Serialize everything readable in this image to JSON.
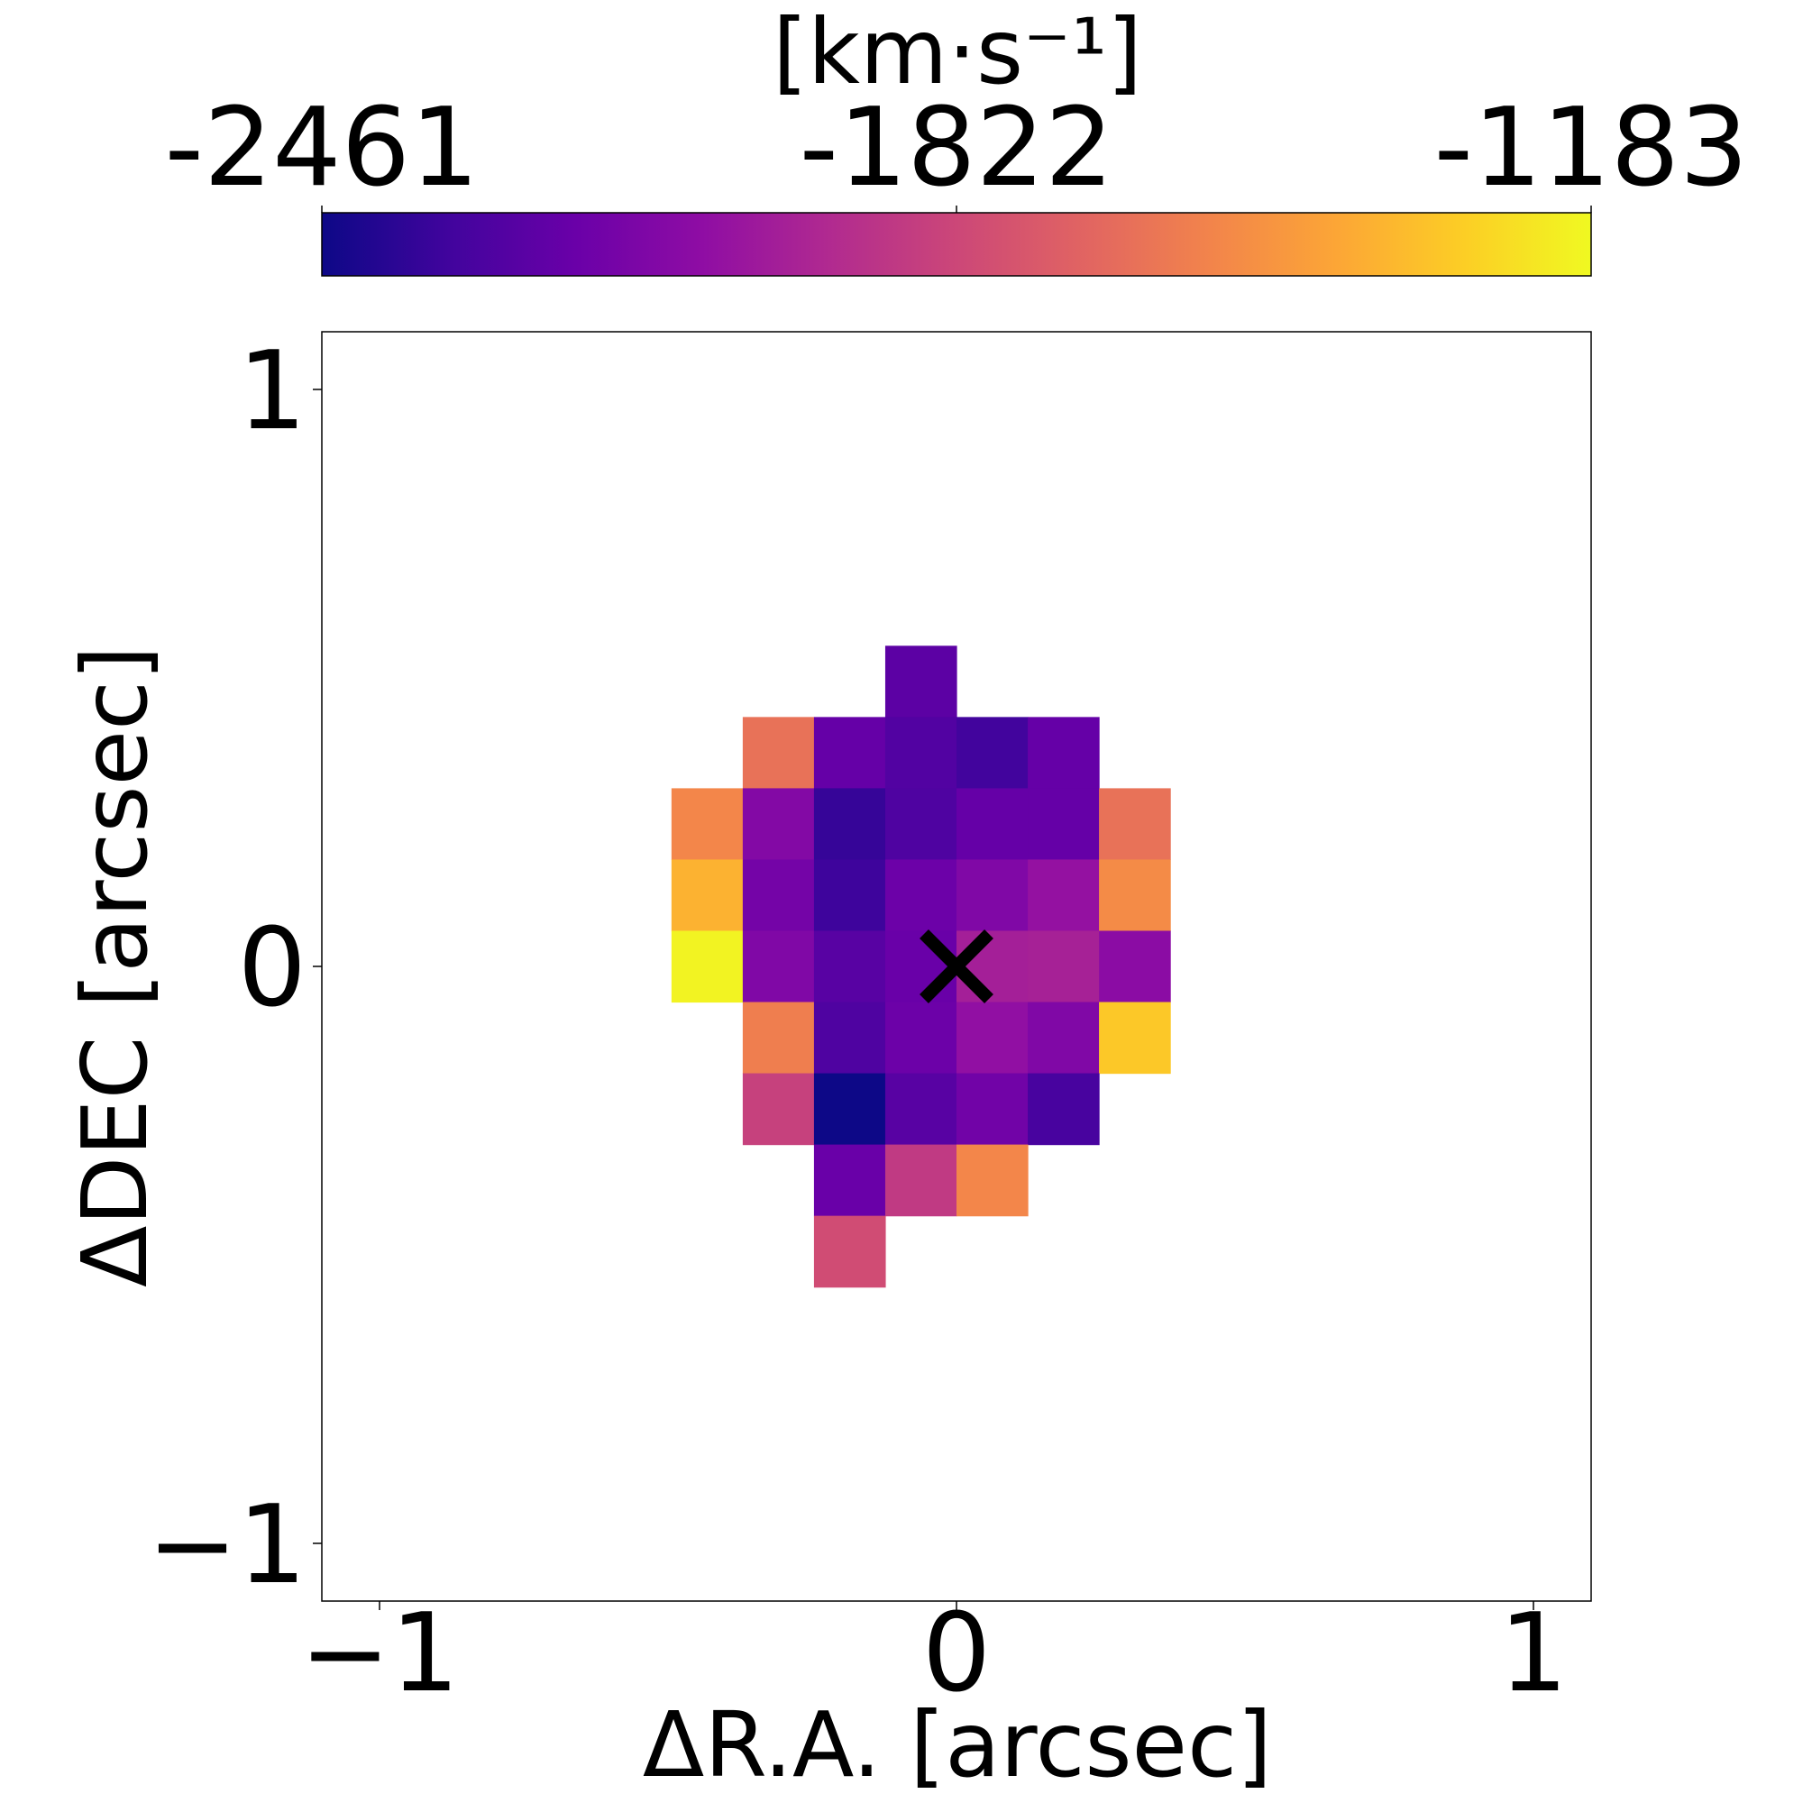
{
  "chart_data": {
    "type": "heatmap",
    "xlabel": "ΔR.A. [arcsec]",
    "ylabel": "ΔDEC [arcsec]",
    "xlim": [
      -1.1,
      1.1
    ],
    "ylim": [
      -1.1,
      1.1
    ],
    "xticks": [
      -1,
      0,
      1
    ],
    "yticks": [
      -1,
      0,
      1
    ],
    "xtick_labels": [
      "−1",
      "0",
      "1"
    ],
    "ytick_labels": [
      "−1",
      "0",
      "1"
    ],
    "grid": false,
    "pixel_size_arcsec": 0.1235,
    "marker": {
      "symbol": "×",
      "x": 0,
      "y": 0,
      "color": "#000000"
    },
    "colorbar": {
      "label": "[km·s⁻¹]",
      "placement": "top",
      "colormap": "plasma",
      "range": [
        -2461,
        -1183
      ],
      "tick_values": [
        -2461,
        -1822,
        -1183
      ],
      "tick_labels": [
        "-2461",
        "-1822",
        "-1183"
      ]
    },
    "cells": [
      {
        "i": -0.5,
        "j": 4,
        "v": -2250
      },
      {
        "i": -2.5,
        "j": 3,
        "v": -1640
      },
      {
        "i": -1.5,
        "j": 3,
        "v": -2220
      },
      {
        "i": -0.5,
        "j": 3,
        "v": -2280
      },
      {
        "i": 0.5,
        "j": 3,
        "v": -2330
      },
      {
        "i": 1.5,
        "j": 3,
        "v": -2220
      },
      {
        "i": -3.5,
        "j": 2,
        "v": -1560
      },
      {
        "i": -2.5,
        "j": 2,
        "v": -2120
      },
      {
        "i": -1.5,
        "j": 2,
        "v": -2360
      },
      {
        "i": -0.5,
        "j": 2,
        "v": -2290
      },
      {
        "i": 0.5,
        "j": 2,
        "v": -2220
      },
      {
        "i": 1.5,
        "j": 2,
        "v": -2220
      },
      {
        "i": 2.5,
        "j": 2,
        "v": -1640
      },
      {
        "i": -3.5,
        "j": 1,
        "v": -1400
      },
      {
        "i": -2.5,
        "j": 1,
        "v": -2170
      },
      {
        "i": -1.5,
        "j": 1,
        "v": -2340
      },
      {
        "i": -0.5,
        "j": 1,
        "v": -2200
      },
      {
        "i": 0.5,
        "j": 1,
        "v": -2130
      },
      {
        "i": 1.5,
        "j": 1,
        "v": -2060
      },
      {
        "i": 2.5,
        "j": 1,
        "v": -1540
      },
      {
        "i": -3.5,
        "j": 0,
        "v": -1200
      },
      {
        "i": -2.5,
        "j": 0,
        "v": -2130
      },
      {
        "i": -1.5,
        "j": 0,
        "v": -2260
      },
      {
        "i": -0.5,
        "j": 0,
        "v": -2210
      },
      {
        "i": 0.5,
        "j": 0,
        "v": -2000
      },
      {
        "i": 1.5,
        "j": 0,
        "v": -1990
      },
      {
        "i": 2.5,
        "j": 0,
        "v": -2090
      },
      {
        "i": -2.5,
        "j": -1,
        "v": -1590
      },
      {
        "i": -1.5,
        "j": -1,
        "v": -2290
      },
      {
        "i": -0.5,
        "j": -1,
        "v": -2200
      },
      {
        "i": 0.5,
        "j": -1,
        "v": -2070
      },
      {
        "i": 1.5,
        "j": -1,
        "v": -2130
      },
      {
        "i": 2.5,
        "j": -1,
        "v": -1330
      },
      {
        "i": -2.5,
        "j": -2,
        "v": -1850
      },
      {
        "i": -1.5,
        "j": -2,
        "v": -2461
      },
      {
        "i": -0.5,
        "j": -2,
        "v": -2260
      },
      {
        "i": 0.5,
        "j": -2,
        "v": -2180
      },
      {
        "i": 1.5,
        "j": -2,
        "v": -2310
      },
      {
        "i": -1.5,
        "j": -3,
        "v": -2210
      },
      {
        "i": -0.5,
        "j": -3,
        "v": -1880
      },
      {
        "i": 0.5,
        "j": -3,
        "v": -1560
      },
      {
        "i": -1.5,
        "j": -4,
        "v": -1800
      }
    ]
  }
}
